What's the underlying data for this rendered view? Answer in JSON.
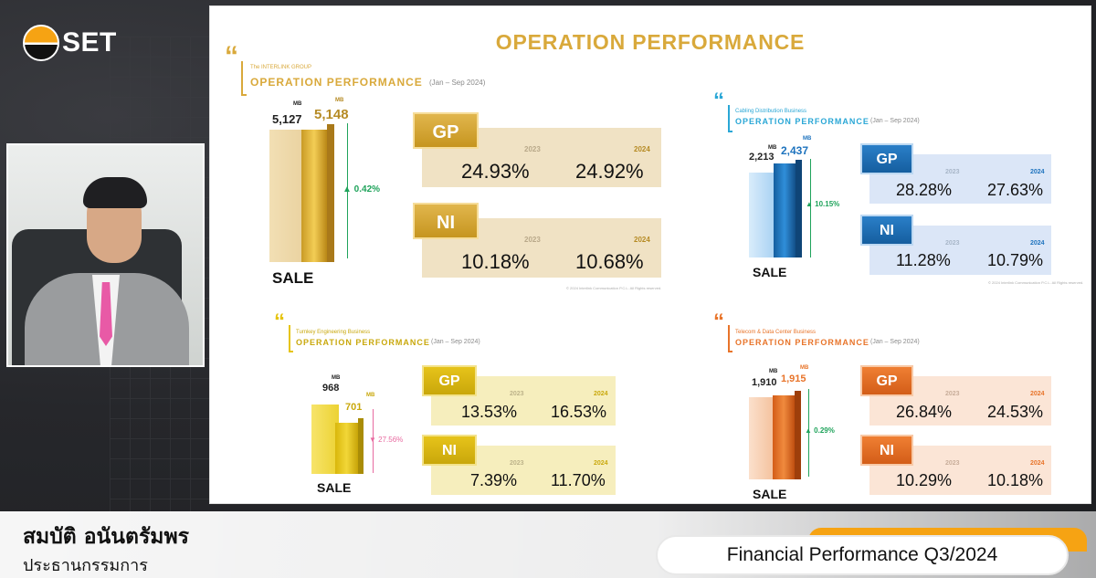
{
  "logo": {
    "text": "SET"
  },
  "slide": {
    "title": "OPERATION PERFORMANCE",
    "panels": {
      "group": {
        "subtitle_small": "The INTERLINK GROUP",
        "subtitle": "OPERATION PERFORMANCE",
        "period": "(Jan – Sep 2024)",
        "sale_label": "SALE",
        "unit": "MB",
        "sale_2023": "5,127",
        "sale_2024": "5,148",
        "sale_ratio_2023": 0.996,
        "sale_ratio_2024": 1.0,
        "growth": "▲ 0.42%",
        "gp_label": "GP",
        "ni_label": "NI",
        "year_2023": "2023",
        "year_2024": "2024",
        "gp_2023": "24.93%",
        "gp_2024": "24.92%",
        "ni_2023": "10.18%",
        "ni_2024": "10.68%",
        "footnote": "© 2024 Interlink Communication P.C.L. All Rights reserved.",
        "color": "#d9a93b"
      },
      "cabling": {
        "subtitle_small": "Cabling Distribution Business",
        "subtitle": "OPERATION PERFORMANCE",
        "period": "(Jan – Sep 2024)",
        "sale_label": "SALE",
        "unit": "MB",
        "sale_2023": "2,213",
        "sale_2024": "2,437",
        "sale_ratio_2023": 0.908,
        "sale_ratio_2024": 1.0,
        "growth": "▲ 10.15%",
        "gp_label": "GP",
        "ni_label": "NI",
        "year_2023": "2023",
        "year_2024": "2024",
        "gp_2023": "28.28%",
        "gp_2024": "27.63%",
        "ni_2023": "11.28%",
        "ni_2024": "10.79%",
        "footnote": "© 2024 Interlink Communication P.C.L. All Rights reserved.",
        "color": "#1e73be"
      },
      "turnkey": {
        "subtitle_small": "Turnkey Engineering Business",
        "subtitle": "OPERATION PERFORMANCE",
        "period": "(Jan – Sep 2024)",
        "sale_label": "SALE",
        "unit": "MB",
        "sale_2023": "968",
        "sale_2024": "701",
        "sale_ratio_2023": 1.0,
        "sale_ratio_2024": 0.724,
        "growth": "▼ 27.56%",
        "gp_label": "GP",
        "ni_label": "NI",
        "year_2023": "2023",
        "year_2024": "2024",
        "gp_2023": "13.53%",
        "gp_2024": "16.53%",
        "ni_2023": "7.39%",
        "ni_2024": "11.70%",
        "color": "#e6c40f"
      },
      "telecom": {
        "subtitle_small": "Telecom & Data Center Business",
        "subtitle": "OPERATION PERFORMANCE",
        "period": "(Jan – Sep 2024)",
        "sale_label": "SALE",
        "unit": "MB",
        "sale_2023": "1,910",
        "sale_2024": "1,915",
        "sale_ratio_2023": 0.997,
        "sale_ratio_2024": 1.0,
        "growth": "▲ 0.29%",
        "gp_label": "GP",
        "ni_label": "NI",
        "year_2023": "2023",
        "year_2024": "2024",
        "gp_2023": "26.84%",
        "gp_2024": "24.53%",
        "ni_2023": "10.29%",
        "ni_2024": "10.18%",
        "color": "#e8742a"
      }
    }
  },
  "lower_third": {
    "name": "สมบัติ อนันตรัมพร",
    "role": "ประธานกรรมการ",
    "banner": "Financial Performance Q3/2024"
  },
  "colors": {
    "gold": "#d9a93b",
    "blue": "#1e73be",
    "yellow": "#e6c40f",
    "orange": "#e8742a",
    "growth_up": "#1fa35b",
    "growth_down": "#e86aa0"
  }
}
